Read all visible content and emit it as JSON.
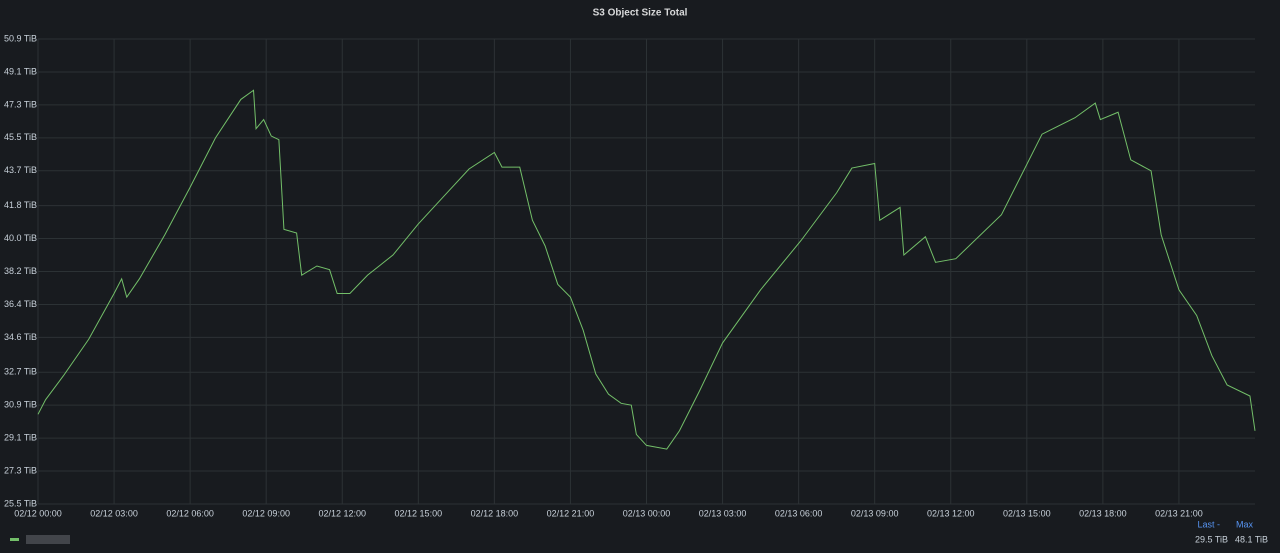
{
  "chart_data": {
    "type": "line",
    "title": "S3 Object Size Total",
    "x": [
      0,
      0.3,
      1,
      2,
      3,
      3.3,
      3.5,
      4,
      5,
      6,
      7,
      8,
      8.5,
      8.6,
      8.9,
      9.2,
      9.5,
      9.7,
      10.2,
      10.4,
      11,
      11.5,
      11.8,
      12.3,
      13,
      14,
      15,
      16,
      17,
      18,
      18.3,
      19,
      19.5,
      20,
      20.5,
      21,
      21.5,
      22,
      22.5,
      23,
      23.4,
      23.6,
      24,
      24.8,
      25.3,
      26.1,
      27,
      28.5,
      30.1,
      31.5,
      32.1,
      33,
      33.2,
      34,
      34.15,
      35,
      35.4,
      36.2,
      38,
      39.6,
      40.9,
      41.7,
      41.9,
      42.6,
      43.1,
      43.9,
      44.3,
      45,
      45.7,
      46.3,
      46.9,
      47.8,
      48
    ],
    "series": [
      {
        "color": "#73bf69",
        "values": [
          30.4,
          31.2,
          32.5,
          34.5,
          37.0,
          37.8,
          36.8,
          37.8,
          40.2,
          42.8,
          45.5,
          47.6,
          48.1,
          46.0,
          46.5,
          45.6,
          45.4,
          40.5,
          40.3,
          38.0,
          38.5,
          38.3,
          37.0,
          37.0,
          38.0,
          39.1,
          40.8,
          42.3,
          43.8,
          44.7,
          43.9,
          43.9,
          41.0,
          39.6,
          37.5,
          36.8,
          35.0,
          32.6,
          31.5,
          31.0,
          30.9,
          29.3,
          28.7,
          28.5,
          29.5,
          31.7,
          34.3,
          37.2,
          39.9,
          42.5,
          43.85,
          44.1,
          41.0,
          41.7,
          39.1,
          40.1,
          38.7,
          38.9,
          41.3,
          45.7,
          46.6,
          47.4,
          46.5,
          46.9,
          44.3,
          43.7,
          40.2,
          37.2,
          35.8,
          33.6,
          32.0,
          31.4,
          29.5
        ]
      }
    ],
    "xlim": [
      0,
      48
    ],
    "xticks": [
      {
        "value": 0,
        "label": "02/12 00:00"
      },
      {
        "value": 3,
        "label": "02/12 03:00"
      },
      {
        "value": 6,
        "label": "02/12 06:00"
      },
      {
        "value": 9,
        "label": "02/12 09:00"
      },
      {
        "value": 12,
        "label": "02/12 12:00"
      },
      {
        "value": 15,
        "label": "02/12 15:00"
      },
      {
        "value": 18,
        "label": "02/12 18:00"
      },
      {
        "value": 21,
        "label": "02/12 21:00"
      },
      {
        "value": 24,
        "label": "02/13 00:00"
      },
      {
        "value": 27,
        "label": "02/13 03:00"
      },
      {
        "value": 30,
        "label": "02/13 06:00"
      },
      {
        "value": 33,
        "label": "02/13 09:00"
      },
      {
        "value": 36,
        "label": "02/13 12:00"
      },
      {
        "value": 39,
        "label": "02/13 15:00"
      },
      {
        "value": 42,
        "label": "02/13 18:00"
      },
      {
        "value": 45,
        "label": "02/13 21:00"
      }
    ],
    "ylim": [
      25.5,
      50.9
    ],
    "yticks": [
      {
        "value": 25.5,
        "label": "25.5 TiB"
      },
      {
        "value": 27.3,
        "label": "27.3 TiB"
      },
      {
        "value": 29.1,
        "label": "29.1 TiB"
      },
      {
        "value": 30.9,
        "label": "30.9 TiB"
      },
      {
        "value": 32.7,
        "label": "32.7 TiB"
      },
      {
        "value": 34.6,
        "label": "34.6 TiB"
      },
      {
        "value": 36.4,
        "label": "36.4 TiB"
      },
      {
        "value": 38.2,
        "label": "38.2 TiB"
      },
      {
        "value": 40.0,
        "label": "40.0 TiB"
      },
      {
        "value": 41.8,
        "label": "41.8 TiB"
      },
      {
        "value": 43.7,
        "label": "43.7 TiB"
      },
      {
        "value": 45.5,
        "label": "45.5 TiB"
      },
      {
        "value": 47.3,
        "label": "47.3 TiB"
      },
      {
        "value": 49.1,
        "label": "49.1 TiB"
      },
      {
        "value": 50.9,
        "label": "50.9 TiB"
      }
    ],
    "grid": true,
    "legend": {
      "headers": [
        "Last -",
        "Max"
      ],
      "values": [
        "29.5 TiB",
        "48.1 TiB"
      ]
    }
  }
}
